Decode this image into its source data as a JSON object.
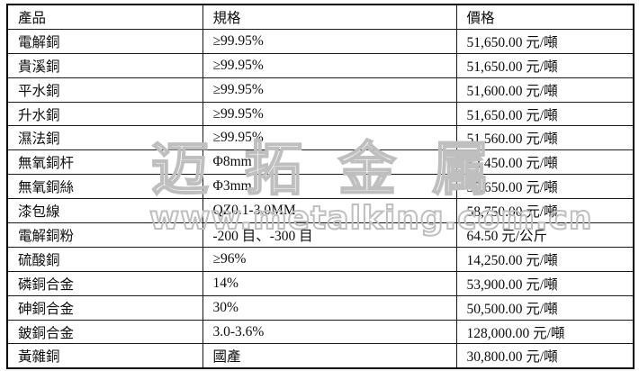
{
  "table": {
    "headers": [
      "產品",
      "規格",
      "價格"
    ],
    "rows": [
      [
        "電解銅",
        "≥99.95%",
        "51,650.00 元/噸"
      ],
      [
        "貴溪銅",
        "≥99.95%",
        "51,650.00 元/噸"
      ],
      [
        "平水銅",
        "≥99.95%",
        "51,600.00 元/噸"
      ],
      [
        "升水銅",
        "≥99.95%",
        "51,650.00 元/噸"
      ],
      [
        "濕法銅",
        "≥99.95%",
        "51,560.00 元/噸"
      ],
      [
        "無氧銅杆",
        "Φ8mm",
        "52,450.00 元/噸"
      ],
      [
        "無氧銅絲",
        "Φ3mm",
        "52,650.00 元/噸"
      ],
      [
        "漆包線",
        "QZ0.1-3.0MM",
        "58,750.00 元/噸"
      ],
      [
        "電解銅粉",
        "-200 目、-300 目",
        "64.50 元/公斤"
      ],
      [
        "硫酸銅",
        "≥96%",
        "14,250.00 元/噸"
      ],
      [
        "磷銅合金",
        "14%",
        "53,900.00 元/噸"
      ],
      [
        "砷銅合金",
        "30%",
        "50,500.00 元/噸"
      ],
      [
        "鈹銅合金",
        "3.0-3.6%",
        "128,000.00 元/噸"
      ],
      [
        "黃雜銅",
        "國產",
        "30,800.00 元/噸"
      ]
    ]
  },
  "watermark": {
    "brand": "迈拓金属",
    "url": "www.metalking.com.cn",
    "stroke_color": "#bfbfbf"
  }
}
